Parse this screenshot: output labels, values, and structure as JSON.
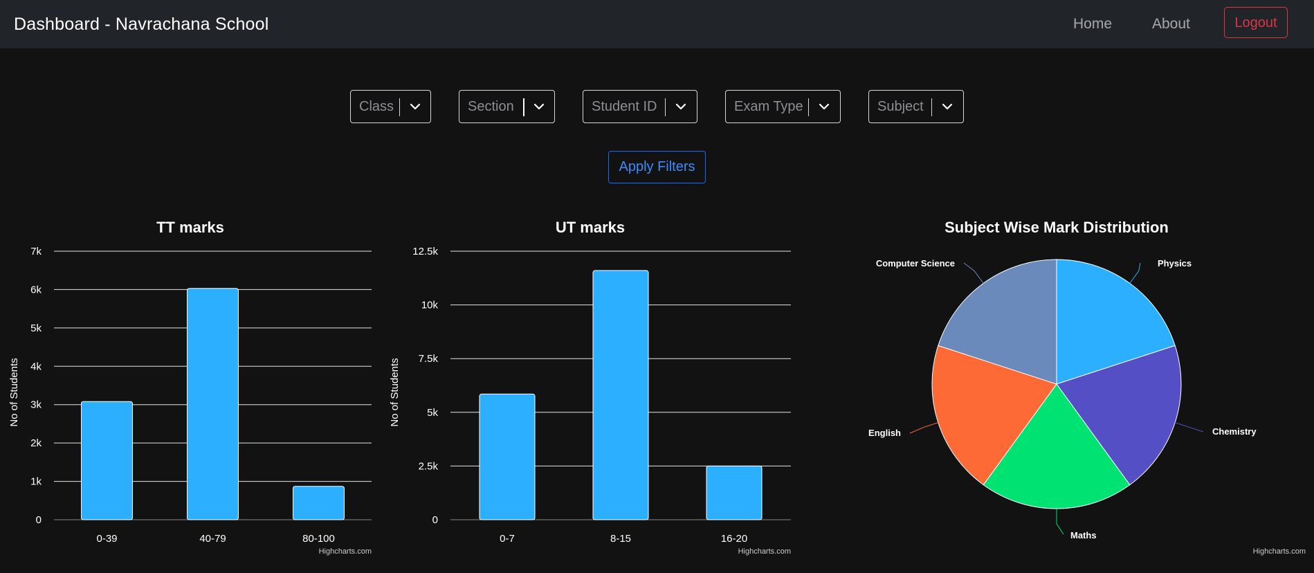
{
  "navbar": {
    "brand": "Dashboard - Navrachana School",
    "links": [
      "Home",
      "About"
    ],
    "logout_label": "Logout"
  },
  "filters": [
    {
      "placeholder": "Class"
    },
    {
      "placeholder": "Section"
    },
    {
      "placeholder": "Student ID"
    },
    {
      "placeholder": "Exam Type"
    },
    {
      "placeholder": "Subject"
    }
  ],
  "apply_label": "Apply Filters",
  "credits": "Highcharts.com",
  "colors": {
    "bar": "#2caffe",
    "background": "#121212",
    "navbar": "#212529",
    "logout": "#dc3545",
    "apply": "#0d6efd"
  },
  "chart_data": [
    {
      "type": "bar",
      "title": "TT marks",
      "ylabel": "No of Students",
      "xlabel": "",
      "categories": [
        "0-39",
        "40-79",
        "80-100"
      ],
      "values": [
        3080,
        6030,
        870
      ],
      "ylim": [
        0,
        7000
      ],
      "yticks": [
        0,
        1000,
        2000,
        3000,
        4000,
        5000,
        6000,
        7000
      ],
      "ytick_labels": [
        "0",
        "1k",
        "2k",
        "3k",
        "4k",
        "5k",
        "6k",
        "7k"
      ],
      "grid": true
    },
    {
      "type": "bar",
      "title": "UT marks",
      "ylabel": "No of Students",
      "xlabel": "",
      "categories": [
        "0-7",
        "8-15",
        "16-20"
      ],
      "values": [
        5850,
        11600,
        2500
      ],
      "ylim": [
        0,
        12500
      ],
      "yticks": [
        0,
        2500,
        5000,
        7500,
        10000,
        12500
      ],
      "ytick_labels": [
        "0",
        "2.5k",
        "5k",
        "7.5k",
        "10k",
        "12.5k"
      ],
      "grid": true
    },
    {
      "type": "pie",
      "title": "Subject Wise Mark Distribution",
      "slices": [
        {
          "label": "Physics",
          "value": 20,
          "color": "#2caffe"
        },
        {
          "label": "Chemistry",
          "value": 20,
          "color": "#544fc5"
        },
        {
          "label": "Maths",
          "value": 20,
          "color": "#00e272"
        },
        {
          "label": "English",
          "value": 20,
          "color": "#fe6a35"
        },
        {
          "label": "Computer Science",
          "value": 20,
          "color": "#6b8abc"
        }
      ]
    }
  ]
}
